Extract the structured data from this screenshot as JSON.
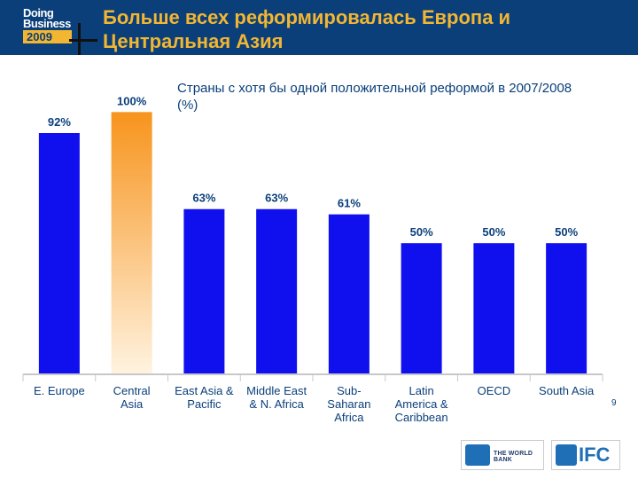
{
  "header": {
    "logo_line1": "Doing",
    "logo_line2": "Business",
    "logo_year": "2009",
    "title": "Больше всех  реформировалась Европа и Центральная Азия"
  },
  "chart_data": {
    "type": "bar",
    "title": "Страны с хотя бы одной положительной реформой в 2007/2008 (%)",
    "categories": [
      [
        "E. Europe"
      ],
      [
        "Central",
        "Asia"
      ],
      [
        "East Asia &",
        "Pacific"
      ],
      [
        "Middle East",
        "& N. Africa"
      ],
      [
        "Sub-",
        "Saharan",
        "Africa"
      ],
      [
        "Latin",
        "America &",
        "Caribbean"
      ],
      [
        "OECD"
      ],
      [
        "South Asia"
      ]
    ],
    "values": [
      92,
      100,
      63,
      63,
      61,
      50,
      50,
      50
    ],
    "data_labels": [
      "92%",
      "100%",
      "63%",
      "63%",
      "61%",
      "50%",
      "50%",
      "50%"
    ],
    "ylim": [
      0,
      100
    ],
    "colors": {
      "bar": "#1010ee",
      "highlight_top": "#f7941d",
      "highlight_bottom": "#fff3e0",
      "label": "#0a3f7a",
      "axis": "#c8c8c8"
    },
    "highlight_index": 1,
    "grid": false,
    "legend": "none"
  },
  "page_number": "9",
  "footer": {
    "world_bank_label": "THE WORLD BANK",
    "ifc_label": "IFC"
  }
}
